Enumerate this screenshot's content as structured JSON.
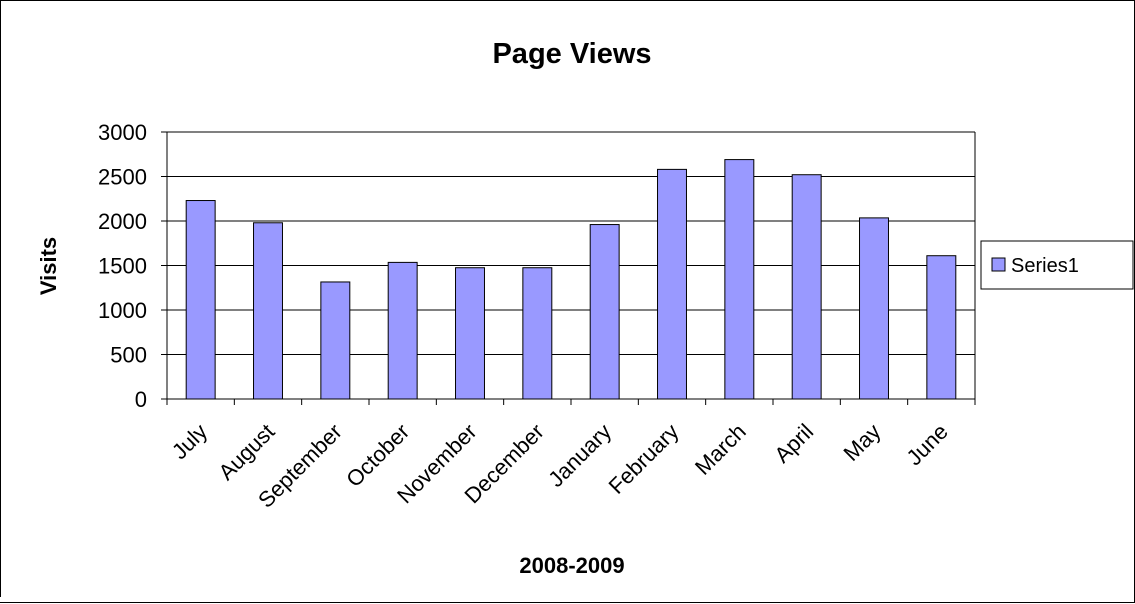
{
  "chart_data": {
    "type": "bar",
    "title": "Page Views",
    "xlabel": "2008-2009",
    "ylabel": "Visits",
    "categories": [
      "July",
      "August",
      "September",
      "October",
      "November",
      "December",
      "January",
      "February",
      "March",
      "April",
      "May",
      "June"
    ],
    "series": [
      {
        "name": "Series1",
        "values": [
          2230,
          1980,
          1315,
          1535,
          1475,
          1475,
          1960,
          2580,
          2690,
          2520,
          2035,
          1610
        ],
        "color": "#9999ff"
      }
    ],
    "ylim": [
      0,
      3000
    ],
    "yticks": [
      "0",
      "500",
      "1000",
      "1500",
      "2000",
      "2500",
      "3000"
    ],
    "grid": true,
    "legend_position": "right"
  }
}
